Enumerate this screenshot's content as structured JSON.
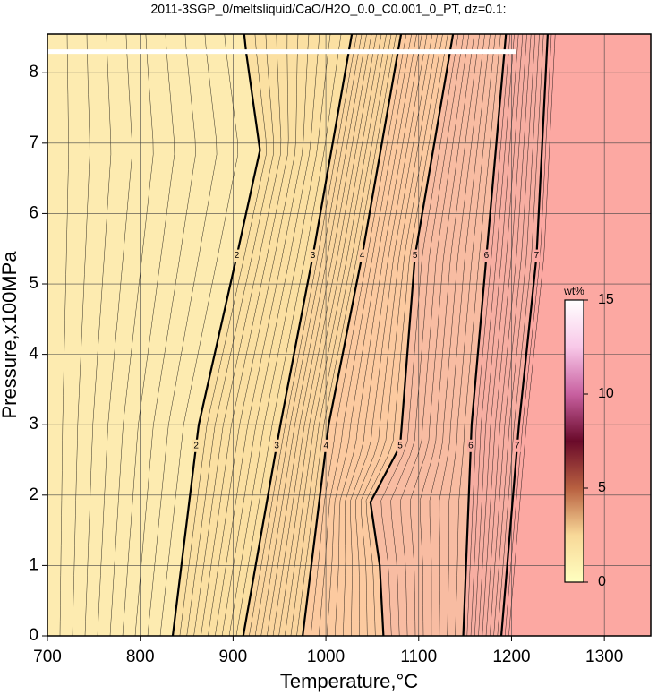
{
  "chart_data": {
    "type": "contour",
    "title": "2011-3SGP_0/meltsliquid/CaO/H2O_0.0_C0.001_0_PT, dz=0.1:",
    "x_label": "Temperature,°C",
    "y_label": "Pressure,x100MPa",
    "xlim": [
      700,
      1350
    ],
    "ylim": [
      0,
      8.55
    ],
    "xticks": [
      700,
      800,
      900,
      1000,
      1100,
      1200,
      1300
    ],
    "yticks": [
      0,
      1,
      2,
      3,
      4,
      5,
      6,
      7,
      8
    ],
    "grid": true,
    "background_fill": "#fdebb0",
    "series": [
      {
        "name": "2",
        "color": "#000000",
        "fill": "#fbe0a2",
        "x": [
          835,
          863,
          904,
          929,
          914,
          912
        ],
        "y": [
          0,
          3,
          5.4,
          6.9,
          8.3,
          8.55
        ]
      },
      {
        "name": "3",
        "color": "#000000",
        "fill": "#fad59e",
        "x": [
          911,
          951,
          986,
          1028
        ],
        "y": [
          0,
          3,
          5.4,
          8.55
        ]
      },
      {
        "name": "4",
        "color": "#000000",
        "fill": "#fccaa0",
        "x": [
          975,
          1003,
          1039,
          1081
        ],
        "y": [
          0,
          3,
          5.4,
          8.55
        ]
      },
      {
        "name": "5",
        "color": "#000000",
        "fill": "#f8bca2",
        "x": [
          1062,
          1058,
          1048,
          1080,
          1096,
          1137
        ],
        "y": [
          0,
          1,
          1.9,
          2.7,
          5.4,
          8.55
        ]
      },
      {
        "name": "6",
        "color": "#000000",
        "fill": "#f7aea2",
        "x": [
          1148,
          1157,
          1173,
          1194
        ],
        "y": [
          0,
          3,
          5.4,
          8.55
        ]
      },
      {
        "name": "7",
        "color": "#000000",
        "fill": "#fca8a2",
        "x": [
          1189,
          1208,
          1227,
          1239
        ],
        "y": [
          0,
          3,
          5.4,
          8.55
        ]
      }
    ],
    "highlight": {
      "color": "#ffffff",
      "x": [
        700,
        1205
      ],
      "y": [
        8.3,
        8.3
      ]
    },
    "colorbar": {
      "label": "wt%",
      "clim": [
        0,
        15
      ],
      "ticks": [
        0,
        5,
        10,
        15
      ],
      "colormap": [
        "#ffffc0",
        "#f8d898",
        "#b86040",
        "#6a0a2a",
        "#c860a0",
        "#f8c8e8",
        "#ffffff"
      ]
    }
  }
}
